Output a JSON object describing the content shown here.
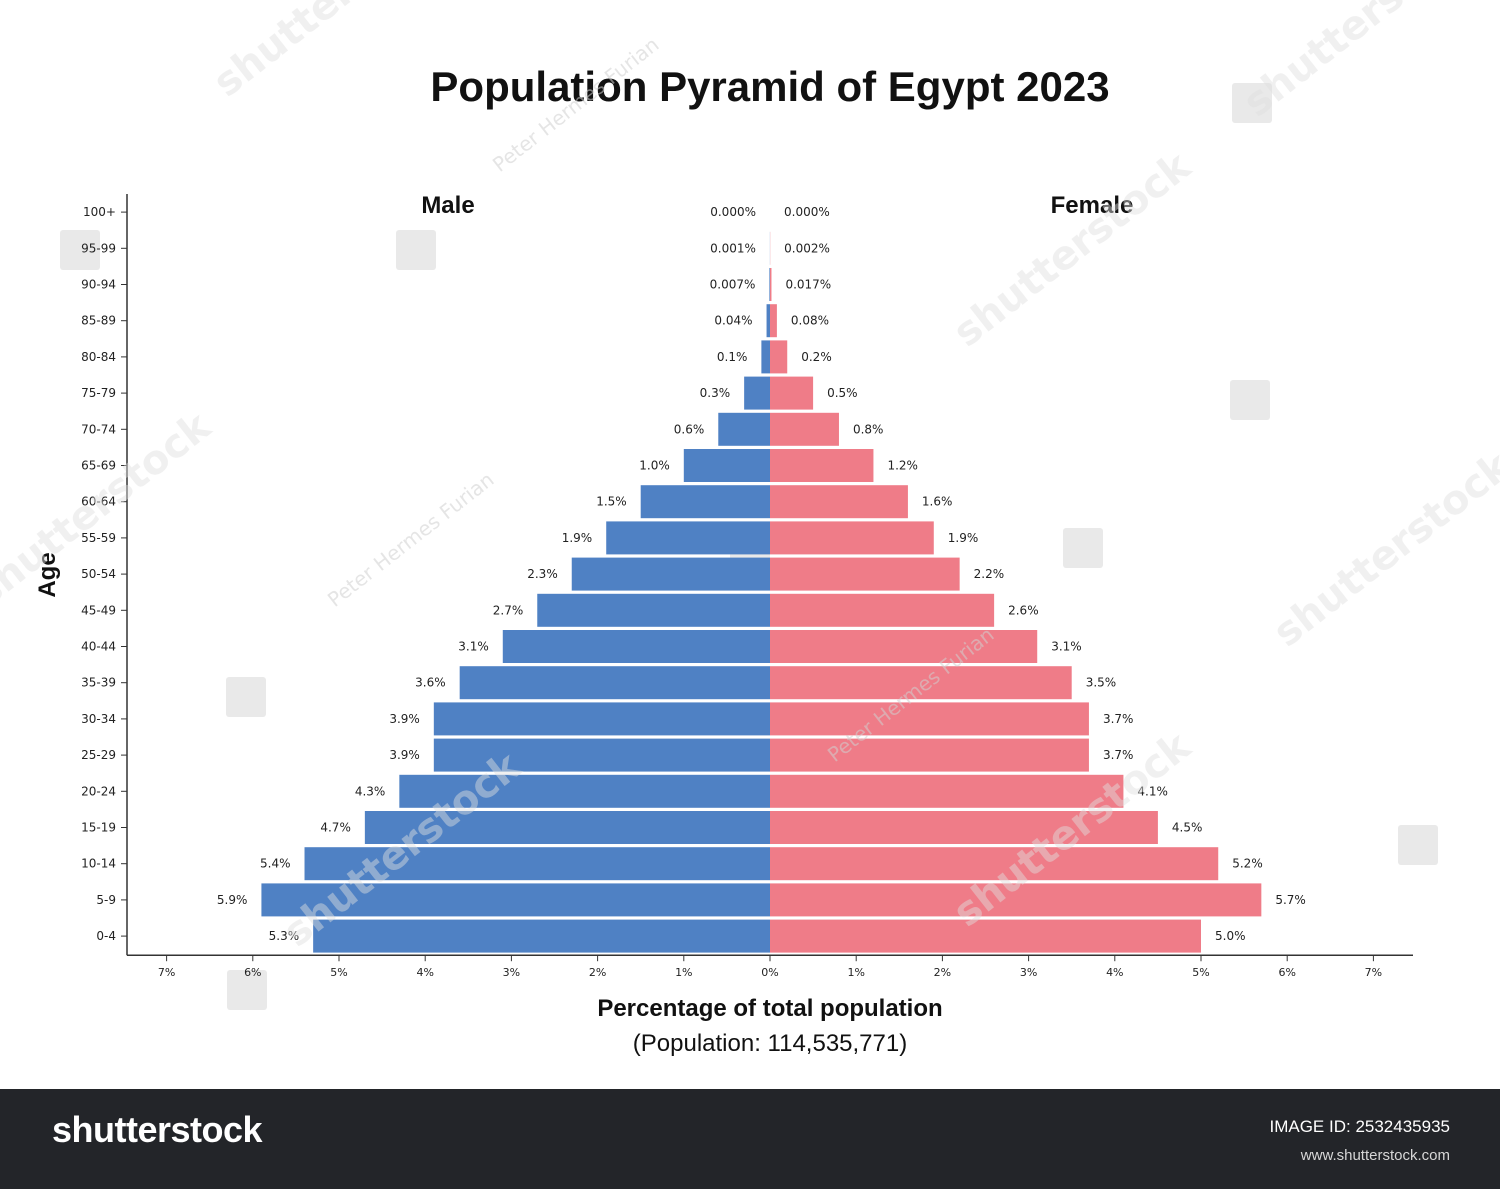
{
  "chart_data": {
    "type": "bar",
    "orientation": "horizontal",
    "variant": "population-pyramid",
    "title": "Population Pyramid of Egypt 2023",
    "xlabel": "Percentage of total population",
    "xlabel_sub": "(Population: 114,535,771)",
    "ylabel": "Age",
    "xlim": [
      -7,
      7
    ],
    "x_ticks": [
      "7%",
      "6%",
      "5%",
      "4%",
      "3%",
      "2%",
      "1%",
      "0%",
      "1%",
      "2%",
      "3%",
      "4%",
      "5%",
      "6%",
      "7%"
    ],
    "categories": [
      "0-4",
      "5-9",
      "10-14",
      "15-19",
      "20-24",
      "25-29",
      "30-34",
      "35-39",
      "40-44",
      "45-49",
      "50-54",
      "55-59",
      "60-64",
      "65-69",
      "70-74",
      "75-79",
      "80-84",
      "85-89",
      "90-94",
      "95-99",
      "100+"
    ],
    "series": [
      {
        "name": "Male",
        "color": "#4f81c4",
        "values": [
          5.3,
          5.9,
          5.4,
          4.7,
          4.3,
          3.9,
          3.9,
          3.6,
          3.1,
          2.7,
          2.3,
          1.9,
          1.5,
          1.0,
          0.6,
          0.3,
          0.1,
          0.04,
          0.007,
          0.001,
          0.0
        ],
        "labels": [
          "5.3%",
          "5.9%",
          "5.4%",
          "4.7%",
          "4.3%",
          "3.9%",
          "3.9%",
          "3.6%",
          "3.1%",
          "2.7%",
          "2.3%",
          "1.9%",
          "1.5%",
          "1.0%",
          "0.6%",
          "0.3%",
          "0.1%",
          "0.04%",
          "0.007%",
          "0.001%",
          "0.000%"
        ]
      },
      {
        "name": "Female",
        "color": "#ef7c88",
        "values": [
          5.0,
          5.7,
          5.2,
          4.5,
          4.1,
          3.7,
          3.7,
          3.5,
          3.1,
          2.6,
          2.2,
          1.9,
          1.6,
          1.2,
          0.8,
          0.5,
          0.2,
          0.08,
          0.017,
          0.002,
          0.0
        ],
        "labels": [
          "5.0%",
          "5.7%",
          "5.2%",
          "4.5%",
          "4.1%",
          "3.7%",
          "3.7%",
          "3.5%",
          "3.1%",
          "2.6%",
          "2.2%",
          "1.9%",
          "1.6%",
          "1.2%",
          "0.8%",
          "0.5%",
          "0.2%",
          "0.08%",
          "0.017%",
          "0.002%",
          "0.000%"
        ]
      }
    ],
    "grid": false,
    "legend": "none"
  },
  "watermark": {
    "author": "Peter Hermes Furian",
    "brand": "shutterstock"
  },
  "footer": {
    "logo": "shutterstock",
    "image_id": "IMAGE ID: 2532435935",
    "url": "www.shutterstock.com"
  }
}
